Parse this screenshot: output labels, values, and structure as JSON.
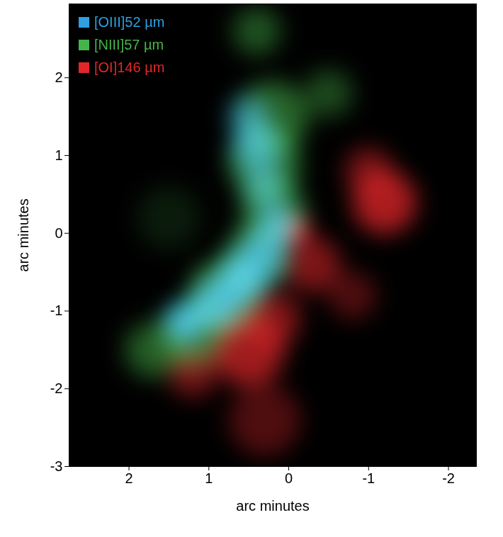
{
  "chart_data": {
    "type": "image",
    "xlabel": "arc minutes",
    "ylabel": "arc minutes",
    "xlim": [
      2.75,
      -2.35
    ],
    "ylim": [
      -3,
      2.95
    ],
    "xticks": [
      2,
      1,
      0,
      -1,
      -2
    ],
    "yticks": [
      -3,
      -2,
      -1,
      0,
      1,
      2
    ],
    "legend": "top-left",
    "series": [
      {
        "name": "[OIII]52 µm",
        "color": "#2e9fe2",
        "blobs": [
          {
            "x": 1.3,
            "y": -1.15,
            "size": 0.25,
            "brightness": 0.9
          },
          {
            "x": 0.9,
            "y": -0.9,
            "size": 0.3,
            "brightness": 0.85
          },
          {
            "x": 0.6,
            "y": -0.6,
            "size": 0.3,
            "brightness": 0.9
          },
          {
            "x": 0.35,
            "y": -0.3,
            "size": 0.3,
            "brightness": 0.8
          },
          {
            "x": 0.15,
            "y": 0.1,
            "size": 0.25,
            "brightness": 0.8
          },
          {
            "x": 0.3,
            "y": 0.6,
            "size": 0.25,
            "brightness": 0.6
          },
          {
            "x": 0.4,
            "y": 1.1,
            "size": 0.3,
            "brightness": 0.7
          },
          {
            "x": 0.5,
            "y": 1.5,
            "size": 0.25,
            "brightness": 0.6
          }
        ]
      },
      {
        "name": "[NIII]57 µm",
        "color": "#45b549",
        "blobs": [
          {
            "x": 1.7,
            "y": -1.5,
            "size": 0.35,
            "brightness": 0.5
          },
          {
            "x": 1.2,
            "y": -1.3,
            "size": 0.4,
            "brightness": 0.6
          },
          {
            "x": 0.8,
            "y": -0.8,
            "size": 0.45,
            "brightness": 0.65
          },
          {
            "x": 0.4,
            "y": -0.3,
            "size": 0.4,
            "brightness": 0.6
          },
          {
            "x": 0.2,
            "y": 0.3,
            "size": 0.4,
            "brightness": 0.6
          },
          {
            "x": 0.3,
            "y": 0.9,
            "size": 0.45,
            "brightness": 0.6
          },
          {
            "x": 0.2,
            "y": 1.5,
            "size": 0.45,
            "brightness": 0.55
          },
          {
            "x": 0.4,
            "y": 2.6,
            "size": 0.3,
            "brightness": 0.45
          },
          {
            "x": -0.5,
            "y": 1.8,
            "size": 0.3,
            "brightness": 0.4
          },
          {
            "x": 1.5,
            "y": 0.2,
            "size": 0.4,
            "brightness": 0.15
          }
        ]
      },
      {
        "name": "[OI]146 µm",
        "color": "#e3262a",
        "blobs": [
          {
            "x": -1.2,
            "y": 0.4,
            "size": 0.4,
            "brightness": 0.75
          },
          {
            "x": -1.0,
            "y": 0.8,
            "size": 0.3,
            "brightness": 0.5
          },
          {
            "x": -0.3,
            "y": -0.4,
            "size": 0.35,
            "brightness": 0.55
          },
          {
            "x": 0.5,
            "y": -1.5,
            "size": 0.45,
            "brightness": 0.7
          },
          {
            "x": 0.2,
            "y": -1.1,
            "size": 0.35,
            "brightness": 0.55
          },
          {
            "x": -0.1,
            "y": 0.05,
            "size": 0.15,
            "brightness": 1
          },
          {
            "x": 0.3,
            "y": -2.4,
            "size": 0.45,
            "brightness": 0.35
          },
          {
            "x": 1.2,
            "y": -1.8,
            "size": 0.3,
            "brightness": 0.5
          },
          {
            "x": -0.8,
            "y": -0.8,
            "size": 0.3,
            "brightness": 0.35
          }
        ]
      }
    ]
  }
}
